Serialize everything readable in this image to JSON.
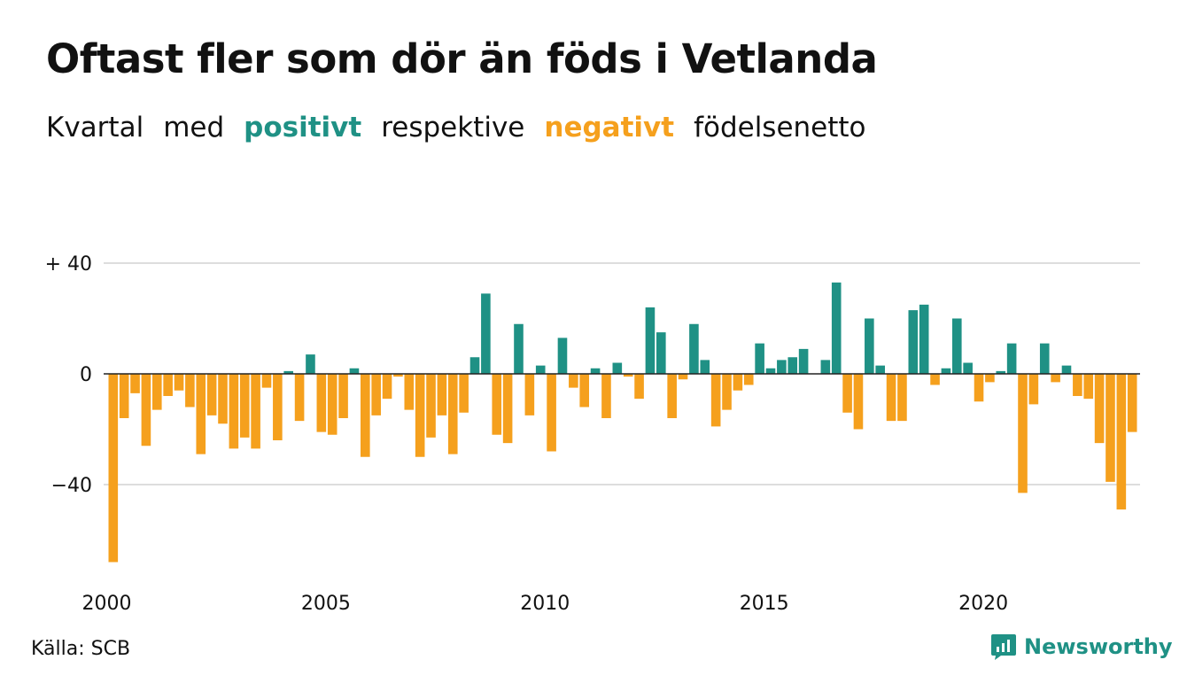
{
  "header": {
    "title": "Oftast fler som dör än föds i Vetlanda",
    "subtitle": {
      "word1": "Kvartal",
      "word2": "med",
      "positive": "positivt",
      "word3": "respektive",
      "negative": "negativt",
      "word4": "födelsenetto"
    }
  },
  "footer": {
    "source": "Källa: SCB",
    "brand": "Newsworthy",
    "brand_icon": "newsworthy-logo-icon"
  },
  "colors": {
    "positive": "#1f9185",
    "negative": "#f5a01d",
    "grid": "#dddddd",
    "text": "#111111"
  },
  "chart_data": {
    "type": "bar",
    "title": "Oftast fler som dör än föds i Vetlanda",
    "subtitle": "Kvartal med positivt respektive negativt födelsenetto",
    "xlabel": "",
    "ylabel": "",
    "ylim": [
      -70,
      40
    ],
    "yticks": [
      {
        "value": 40,
        "label": "+ 40"
      },
      {
        "value": 0,
        "label": "0"
      },
      {
        "value": -40,
        "label": "−40"
      }
    ],
    "xticks": [
      {
        "year": 2000,
        "label": "2000"
      },
      {
        "year": 2005,
        "label": "2005"
      },
      {
        "year": 2010,
        "label": "2010"
      },
      {
        "year": 2015,
        "label": "2015"
      },
      {
        "year": 2020,
        "label": "2020"
      }
    ],
    "grid": true,
    "start": "2000 Q1",
    "frequency": "quarterly",
    "values": [
      -68,
      -16,
      -7,
      -26,
      -13,
      -8,
      -6,
      -12,
      -29,
      -15,
      -18,
      -27,
      -23,
      -27,
      -5,
      -24,
      1,
      -17,
      7,
      -21,
      -22,
      -16,
      2,
      -30,
      -15,
      -9,
      -1,
      -13,
      -30,
      -23,
      -15,
      -29,
      -14,
      6,
      29,
      -22,
      -25,
      18,
      -15,
      3,
      -28,
      13,
      -5,
      -12,
      2,
      -16,
      4,
      -1,
      -9,
      24,
      15,
      -16,
      -2,
      18,
      5,
      -19,
      -13,
      -6,
      -4,
      11,
      2,
      5,
      6,
      9,
      0,
      5,
      33,
      -14,
      -20,
      20,
      3,
      -17,
      -17,
      23,
      25,
      -4,
      2,
      20,
      4,
      -10,
      -3,
      1,
      11,
      -43,
      -11,
      11,
      -3,
      3,
      -8,
      -9,
      -25,
      -39,
      -49,
      -21
    ]
  }
}
